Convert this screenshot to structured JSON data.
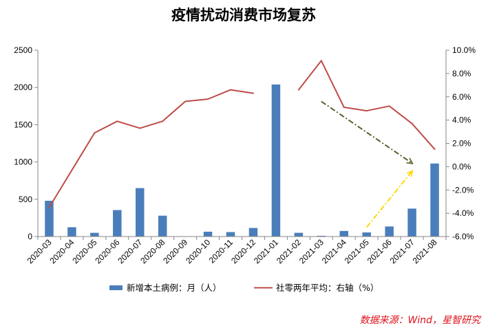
{
  "chart_data": {
    "type": "bar",
    "title": "疫情扰动消费市场复苏",
    "categories": [
      "2020-03",
      "2020-04",
      "2020-05",
      "2020-06",
      "2020-07",
      "2020-08",
      "2020-09",
      "2020-10",
      "2020-11",
      "2020-12",
      "2021-01",
      "2021-02",
      "2021-03",
      "2021-04",
      "2021-05",
      "2021-06",
      "2021-07",
      "2021-08"
    ],
    "series": [
      {
        "name": "新增本土病例：月（人）",
        "type": "bar",
        "axis": "left",
        "color": "#4a7ebb",
        "values": [
          480,
          125,
          50,
          355,
          650,
          280,
          0,
          65,
          60,
          115,
          2040,
          50,
          10,
          75,
          55,
          135,
          375,
          980
        ]
      },
      {
        "name": "社零两年平均：右轴（%）",
        "type": "line",
        "axis": "right",
        "color": "#be4b48",
        "values": [
          -3.5,
          -0.3,
          2.9,
          3.9,
          3.3,
          3.9,
          5.6,
          5.8,
          6.6,
          6.3,
          null,
          6.6,
          9.1,
          5.1,
          4.8,
          5.2,
          3.7,
          1.5
        ]
      }
    ],
    "y_left": {
      "min": 0,
      "max": 2500,
      "ticks": [
        0,
        500,
        1000,
        1500,
        2000,
        2500
      ],
      "tick_labels": [
        "0",
        "500",
        "1000",
        "1500",
        "2000",
        "2500"
      ]
    },
    "y_right": {
      "min": -6,
      "max": 10,
      "ticks": [
        -6,
        -4,
        -2,
        0,
        2,
        4,
        6,
        8,
        10
      ],
      "tick_labels": [
        "-6.0%",
        "-4.0%",
        "-2.0%",
        "0.0%",
        "2.0%",
        "4.0%",
        "6.0%",
        "8.0%",
        "10.0%"
      ]
    },
    "annotations": [
      {
        "style": "dash-dot arrow",
        "color": "#4f6228",
        "from": {
          "x": "2021-03",
          "y": 5.6
        },
        "to": {
          "x": "2021-07",
          "y": 0.3
        }
      },
      {
        "style": "dash-dot arrow",
        "color": "#ffd700",
        "from": {
          "x": "2021-05",
          "y": -5.2
        },
        "to": {
          "x": "2021-07",
          "y": -0.4
        }
      }
    ],
    "grid": false,
    "legend_position": "bottom",
    "source": "数据来源：Wind，星智研究"
  }
}
